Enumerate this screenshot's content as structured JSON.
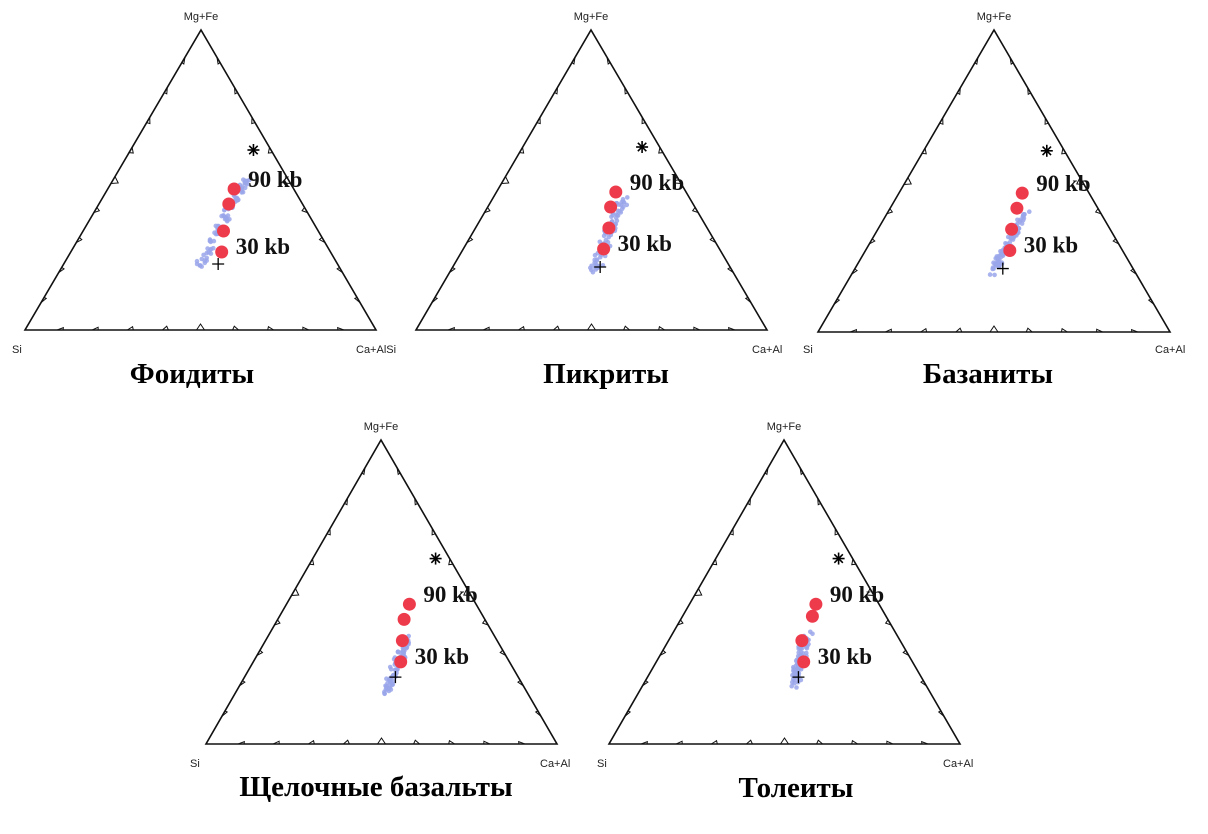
{
  "colors": {
    "experiment": "#ee3b4c",
    "rock": "#9aa6ea",
    "frame": "#111111"
  },
  "chart_data": [
    {
      "type": "ternary",
      "title": "Фоидиты",
      "vertices": {
        "top": "Mg+Fe",
        "left": "Si",
        "right": "Ca+AlSi"
      },
      "pressure_labels": {
        "high": "90 kb",
        "low": "30 kb"
      },
      "experiment_points": [
        [
          0.36,
          0.47
        ],
        [
          0.37,
          0.42
        ],
        [
          0.4,
          0.33
        ],
        [
          0.43,
          0.26
        ]
      ],
      "rock_points_spread": [
        0.38,
        0.5,
        0.39,
        0.2,
        0.025
      ],
      "star": [
        0.35,
        0.6
      ],
      "cross": [
        0.44,
        0.22
      ]
    },
    {
      "type": "ternary",
      "title": "Пикриты",
      "vertices": {
        "top": "Mg+Fe",
        "left": "Si",
        "right": "Ca+Al"
      },
      "pressure_labels": {
        "high": "90 kb",
        "low": "30 kb"
      },
      "experiment_points": [
        [
          0.34,
          0.46
        ],
        [
          0.35,
          0.41
        ],
        [
          0.38,
          0.34
        ],
        [
          0.4,
          0.27
        ]
      ],
      "rock_points_spread": [
        0.37,
        0.44,
        0.41,
        0.2,
        0.025
      ],
      "star": [
        0.34,
        0.61
      ],
      "cross": [
        0.42,
        0.21
      ]
    },
    {
      "type": "ternary",
      "title": "Базаниты",
      "vertices": {
        "top": "Mg+Fe",
        "left": "Si",
        "right": "Ca+Al"
      },
      "pressure_labels": {
        "high": "90 kb",
        "low": "30 kb"
      },
      "experiment_points": [
        [
          0.35,
          0.46
        ],
        [
          0.36,
          0.41
        ],
        [
          0.38,
          0.34
        ],
        [
          0.41,
          0.27
        ]
      ],
      "rock_points_spread": [
        0.39,
        0.39,
        0.4,
        0.19,
        0.02
      ],
      "star": [
        0.35,
        0.6
      ],
      "cross": [
        0.42,
        0.21
      ]
    },
    {
      "type": "ternary",
      "title": "Щелочные базальты",
      "vertices": {
        "top": "Mg+Fe",
        "left": "Si",
        "right": "Ca+Al"
      },
      "pressure_labels": {
        "high": "90 kb",
        "low": "30 kb"
      },
      "experiment_points": [
        [
          0.35,
          0.46
        ],
        [
          0.36,
          0.41
        ],
        [
          0.39,
          0.34
        ],
        [
          0.42,
          0.27
        ]
      ],
      "rock_points_spread": [
        0.4,
        0.35,
        0.43,
        0.17,
        0.02
      ],
      "star": [
        0.35,
        0.61
      ],
      "cross": [
        0.43,
        0.22
      ]
    },
    {
      "type": "ternary",
      "title": "Толеиты",
      "vertices": {
        "top": "Mg+Fe",
        "left": "Si",
        "right": "Ca+Al"
      },
      "pressure_labels": {
        "high": "90 kb",
        "low": "30 kb"
      },
      "experiment_points": [
        [
          0.36,
          0.46
        ],
        [
          0.37,
          0.42
        ],
        [
          0.38,
          0.34
        ],
        [
          0.42,
          0.27
        ]
      ],
      "rock_points_spread": [
        0.38,
        0.36,
        0.43,
        0.19,
        0.025
      ],
      "star": [
        0.35,
        0.61
      ],
      "cross": [
        0.43,
        0.22
      ]
    }
  ]
}
